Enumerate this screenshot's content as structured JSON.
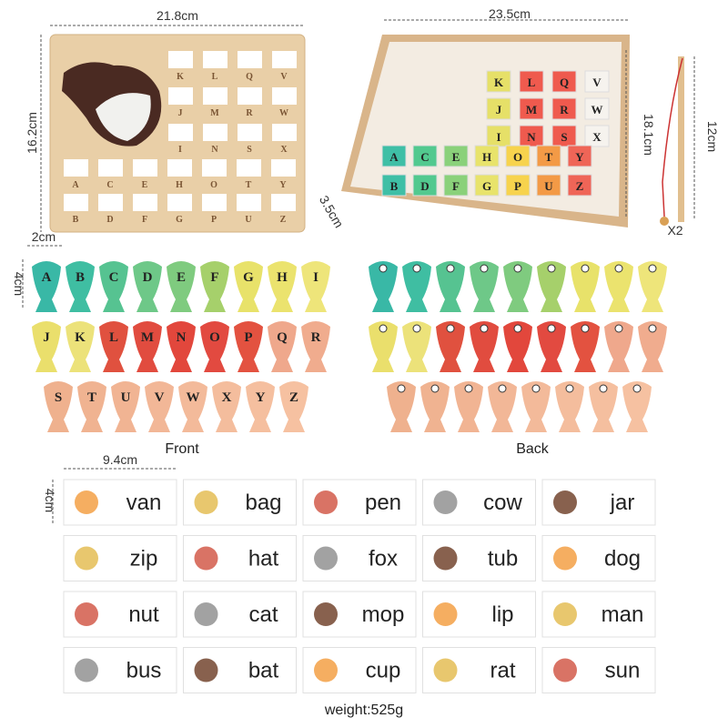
{
  "dimensions": {
    "board_width": "21.8cm",
    "board_height": "16.2cm",
    "tray_width": "23.5cm",
    "tray_depth": "18.1cm",
    "tray_height": "3.5cm",
    "rod_length": "12cm",
    "rod_count": "X2",
    "fish_width": "2cm",
    "fish_height": "4cm",
    "card_width": "9.4cm",
    "card_height": "4cm"
  },
  "board": {
    "rows": [
      [
        "K",
        "L",
        "Q",
        "V"
      ],
      [
        "J",
        "M",
        "R",
        "W"
      ],
      [
        "I",
        "N",
        "S",
        "X"
      ],
      [
        "A",
        "C",
        "E",
        "H",
        "O",
        "T",
        "Y"
      ],
      [
        "B",
        "D",
        "F",
        "G",
        "P",
        "U",
        "Z"
      ]
    ]
  },
  "tray": {
    "rows": [
      [
        "K",
        "L",
        "Q",
        "V"
      ],
      [
        "J",
        "M",
        "R",
        "W"
      ],
      [
        "I",
        "N",
        "S",
        "X"
      ],
      [
        "A",
        "C",
        "E",
        "H",
        "O",
        "T",
        "Y"
      ],
      [
        "B",
        "D",
        "F",
        "G",
        "P",
        "U",
        "Z"
      ]
    ]
  },
  "fish": {
    "rows": [
      [
        "A",
        "B",
        "C",
        "D",
        "E",
        "F",
        "G",
        "H",
        "I"
      ],
      [
        "J",
        "K",
        "L",
        "M",
        "N",
        "O",
        "P",
        "Q",
        "R"
      ],
      [
        "S",
        "T",
        "U",
        "V",
        "W",
        "X",
        "Y",
        "Z"
      ]
    ],
    "front_label": "Front",
    "back_label": "Back"
  },
  "cards": {
    "rows": [
      [
        "van",
        "bag",
        "pen",
        "cow",
        "jar"
      ],
      [
        "zip",
        "hat",
        "fox",
        "tub",
        "dog"
      ],
      [
        "nut",
        "cat",
        "mop",
        "lip",
        "man"
      ],
      [
        "bus",
        "bat",
        "cup",
        "rat",
        "sun"
      ]
    ]
  },
  "weight": "weight:525g"
}
